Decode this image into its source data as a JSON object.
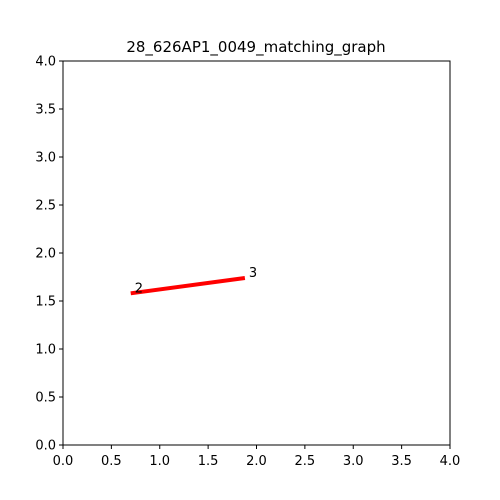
{
  "chart_data": {
    "type": "line",
    "title": "28_626AP1_0049_matching_graph",
    "xlabel": "",
    "ylabel": "",
    "xlim": [
      0,
      4
    ],
    "ylim": [
      0,
      4
    ],
    "x_ticks": [
      "0.0",
      "0.5",
      "1.0",
      "1.5",
      "2.0",
      "2.5",
      "3.0",
      "3.5",
      "4.0"
    ],
    "y_ticks": [
      "0.0",
      "0.5",
      "1.0",
      "1.5",
      "2.0",
      "2.5",
      "3.0",
      "3.5",
      "4.0"
    ],
    "grid": false,
    "nodes": [
      {
        "label": "2",
        "x": 0.7,
        "y": 1.58
      },
      {
        "label": "3",
        "x": 1.88,
        "y": 1.74
      }
    ],
    "edges": [
      {
        "from": 0,
        "to": 1,
        "color": "#ff0000"
      }
    ]
  }
}
